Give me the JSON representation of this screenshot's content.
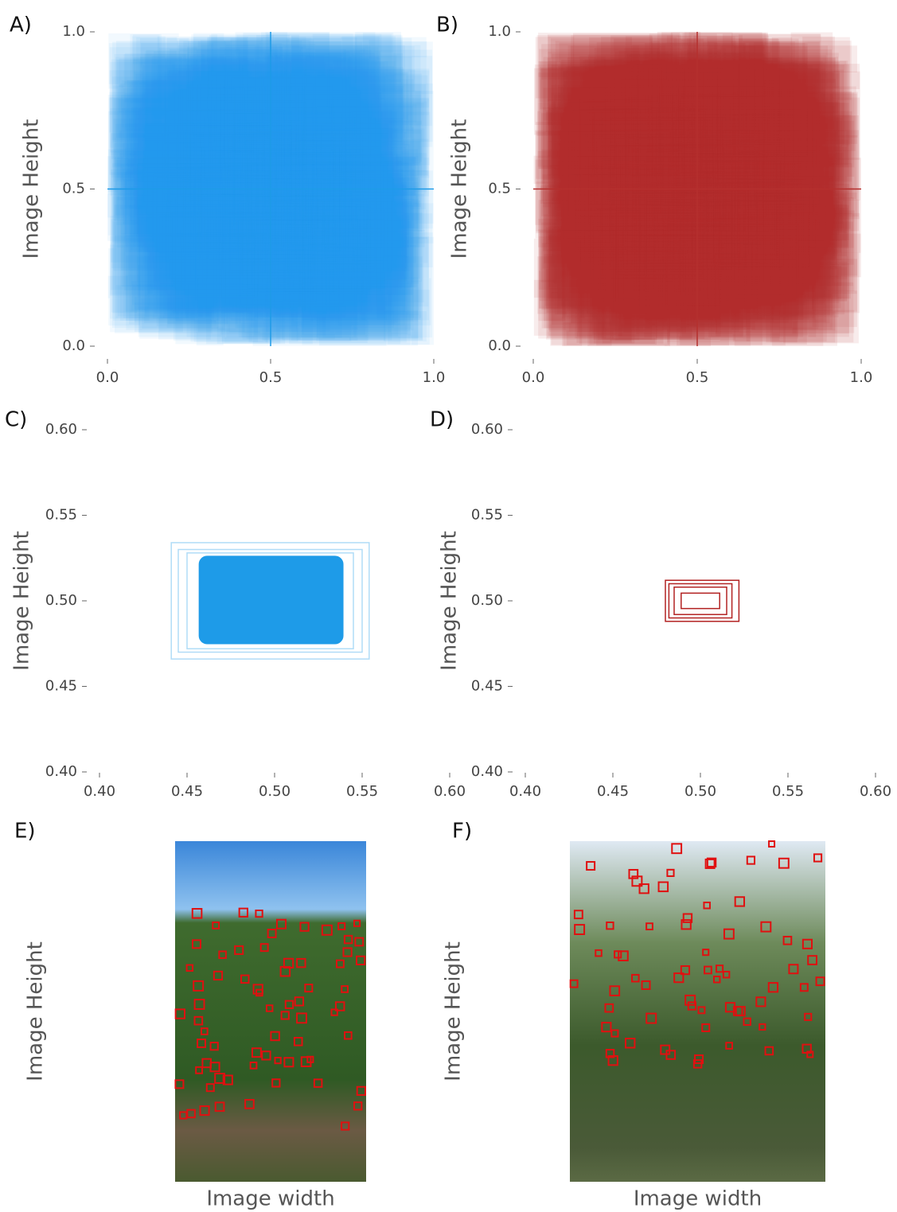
{
  "chart_data": [
    {
      "type": "density",
      "label": "A)",
      "ylabel": "Image Height",
      "color": "#1e9be8",
      "opacity": 0.06,
      "xlim": [
        0,
        1
      ],
      "ylim": [
        0,
        1
      ],
      "xticks": [
        {
          "value": 0,
          "label": "0.0"
        },
        0.5,
        {
          "value": 1,
          "label": "1.0"
        }
      ],
      "yticks": [
        {
          "value": 0,
          "label": "0.0"
        },
        0.5,
        {
          "value": 1,
          "label": "1.0"
        }
      ]
    },
    {
      "type": "density",
      "label": "B)",
      "ylabel": "Image Height",
      "color": "#b5302e",
      "opacity": 0.09,
      "xlim": [
        0,
        1
      ],
      "ylim": [
        0,
        1
      ],
      "xticks": [
        {
          "value": 0,
          "label": "0.0"
        },
        0.5,
        {
          "value": 1,
          "label": "1.0"
        }
      ],
      "yticks": [
        {
          "value": 0,
          "label": "0.0"
        },
        0.5,
        {
          "value": 1,
          "label": "1.0"
        }
      ]
    },
    {
      "type": "boxes",
      "label": "C)",
      "ylabel": "Image Height",
      "color": "#1e9be8",
      "xlim": [
        0.4,
        0.6
      ],
      "ylim": [
        0.4,
        0.6
      ],
      "xticks": [
        {
          "value": 0.4,
          "label": "0.40"
        },
        0.45,
        {
          "value": 0.5,
          "label": "0.50"
        },
        0.55,
        {
          "value": 0.6,
          "label": "0.60"
        }
      ],
      "yticks": [
        {
          "value": 0.4,
          "label": "0.40"
        },
        0.45,
        {
          "value": 0.5,
          "label": "0.50"
        },
        0.55,
        {
          "value": 0.6,
          "label": "0.60"
        }
      ],
      "boxes": [
        [
          0.441,
          0.466,
          0.554,
          0.534
        ],
        [
          0.445,
          0.47,
          0.55,
          0.53
        ],
        [
          0.45,
          0.472,
          0.545,
          0.528
        ]
      ],
      "filled_boxes": [
        [
          0.457,
          0.475,
          0.539,
          0.526
        ]
      ]
    },
    {
      "type": "boxes",
      "label": "D)",
      "ylabel": "Image Height",
      "color": "#b22222",
      "xlim": [
        0.4,
        0.6
      ],
      "ylim": [
        0.4,
        0.6
      ],
      "xticks": [
        {
          "value": 0.4,
          "label": "0.40"
        },
        0.45,
        {
          "value": 0.5,
          "label": "0.50"
        },
        0.55,
        {
          "value": 0.6,
          "label": "0.60"
        }
      ],
      "yticks": [
        {
          "value": 0.4,
          "label": "0.40"
        },
        0.45,
        {
          "value": 0.5,
          "label": "0.50"
        },
        0.55,
        {
          "value": 0.6,
          "label": "0.60"
        }
      ],
      "boxes": [
        [
          0.48,
          0.488,
          0.522,
          0.512
        ],
        [
          0.482,
          0.49,
          0.518,
          0.51
        ],
        [
          0.485,
          0.492,
          0.515,
          0.508
        ],
        [
          0.489,
          0.4955,
          0.511,
          0.5045
        ]
      ],
      "filled_boxes": []
    },
    {
      "type": "image",
      "label": "E)",
      "ylabel": "Image Height",
      "xlabel": "Image width"
    },
    {
      "type": "image",
      "label": "F)",
      "ylabel": "Image Height",
      "xlabel": "Image width"
    }
  ]
}
